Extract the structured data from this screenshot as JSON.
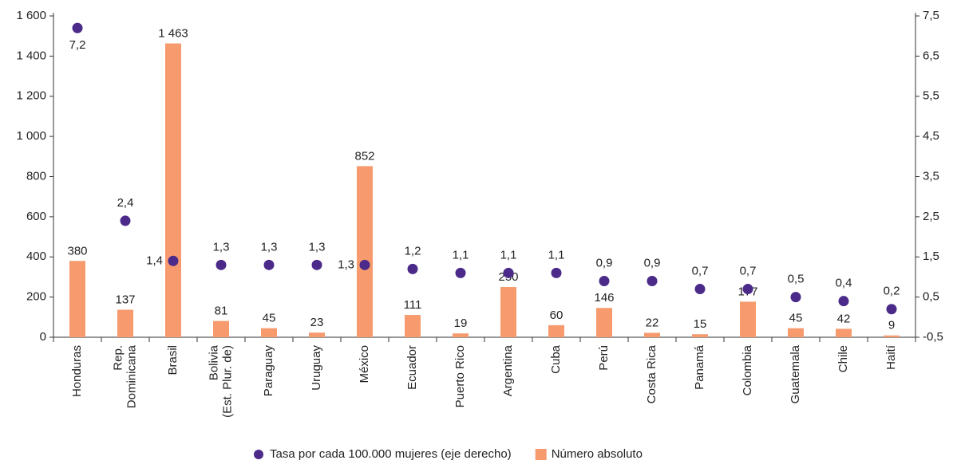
{
  "chart_data": {
    "type": "bar",
    "categories": [
      "Honduras",
      "Rep.\nDominicana",
      "Brasil",
      "Bolivia\n(Est. Plur. de)",
      "Paraguay",
      "Uruguay",
      "México",
      "Ecuador",
      "Puerto Rico",
      "Argentina",
      "Cuba",
      "Perú",
      "Costa Rica",
      "Panamá",
      "Colombia",
      "Guatemala",
      "Chile",
      "Haití"
    ],
    "series": [
      {
        "name": "Tasa por cada 100.000 mujeres (eje derecho)",
        "type": "scatter",
        "axis": "y2",
        "color": "#4b2a8a",
        "values": [
          7.2,
          2.4,
          1.4,
          1.3,
          1.3,
          1.3,
          1.3,
          1.2,
          1.1,
          1.1,
          1.1,
          0.9,
          0.9,
          0.7,
          0.7,
          0.5,
          0.4,
          0.2
        ],
        "value_labels": [
          "7,2",
          "2,4",
          "1,4",
          "1,3",
          "1,3",
          "1,3",
          "1,3",
          "1,2",
          "1,1",
          "1,1",
          "1,1",
          "0,9",
          "0,9",
          "0,7",
          "0,7",
          "0,5",
          "0,4",
          "0,2"
        ]
      },
      {
        "name": "Número absoluto",
        "type": "bar",
        "color": "#f79a6e",
        "values": [
          380,
          137,
          1463,
          81,
          45,
          23,
          852,
          111,
          19,
          250,
          60,
          146,
          22,
          15,
          177,
          45,
          42,
          9
        ],
        "value_labels": [
          "380",
          "137",
          "1 463",
          "81",
          "45",
          "23",
          "852",
          "111",
          "19",
          "250",
          "60",
          "146",
          "22",
          "15",
          "177",
          "45",
          "42",
          "9"
        ]
      }
    ],
    "ylim": [
      0,
      1600
    ],
    "yticks": [
      0,
      200,
      400,
      600,
      800,
      {
        "value": 1000,
        "label": "1 000"
      },
      {
        "value": 1200,
        "label": "1 200"
      },
      {
        "value": 1400,
        "label": "1 400"
      },
      {
        "value": 1600,
        "label": "1 600"
      }
    ],
    "y2lim": [
      -0.5,
      7.5
    ],
    "y2ticks": [
      {
        "value": -0.5,
        "label": "-0,5"
      },
      {
        "value": 0.5,
        "label": "0,5"
      },
      {
        "value": 1.5,
        "label": "1,5"
      },
      {
        "value": 2.5,
        "label": "2,5"
      },
      {
        "value": 3.5,
        "label": "3,5"
      },
      {
        "value": 4.5,
        "label": "4,5"
      },
      {
        "value": 5.5,
        "label": "5,5"
      },
      {
        "value": 6.5,
        "label": "6,5"
      },
      {
        "value": 7.5,
        "label": "7,5"
      }
    ],
    "grid": false
  }
}
